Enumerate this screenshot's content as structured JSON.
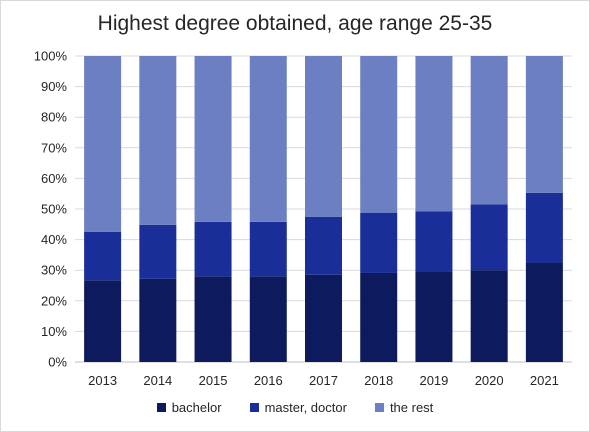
{
  "chart_data": {
    "type": "bar",
    "stacked": true,
    "title": "Highest degree obtained, age range 25-35",
    "categories": [
      "2013",
      "2014",
      "2015",
      "2016",
      "2017",
      "2018",
      "2019",
      "2020",
      "2021"
    ],
    "series": [
      {
        "name": "bachelor",
        "color": "#0d1b5e",
        "values": [
          26.7,
          27.2,
          28.0,
          28.0,
          28.5,
          29.1,
          29.6,
          30.0,
          32.5
        ]
      },
      {
        "name": "master, doctor",
        "color": "#1a2e9a",
        "values": [
          15.8,
          17.6,
          17.8,
          17.8,
          18.9,
          19.7,
          19.6,
          21.5,
          22.8
        ]
      },
      {
        "name": "the rest",
        "color": "#6b7fc2",
        "values": [
          57.5,
          55.2,
          54.2,
          54.2,
          52.6,
          51.2,
          50.8,
          48.5,
          44.7
        ]
      }
    ],
    "yticks": [
      "0%",
      "10%",
      "20%",
      "30%",
      "40%",
      "50%",
      "60%",
      "70%",
      "80%",
      "90%",
      "100%"
    ],
    "ylim": [
      0,
      100
    ],
    "grid": true,
    "legend": "bottom"
  }
}
